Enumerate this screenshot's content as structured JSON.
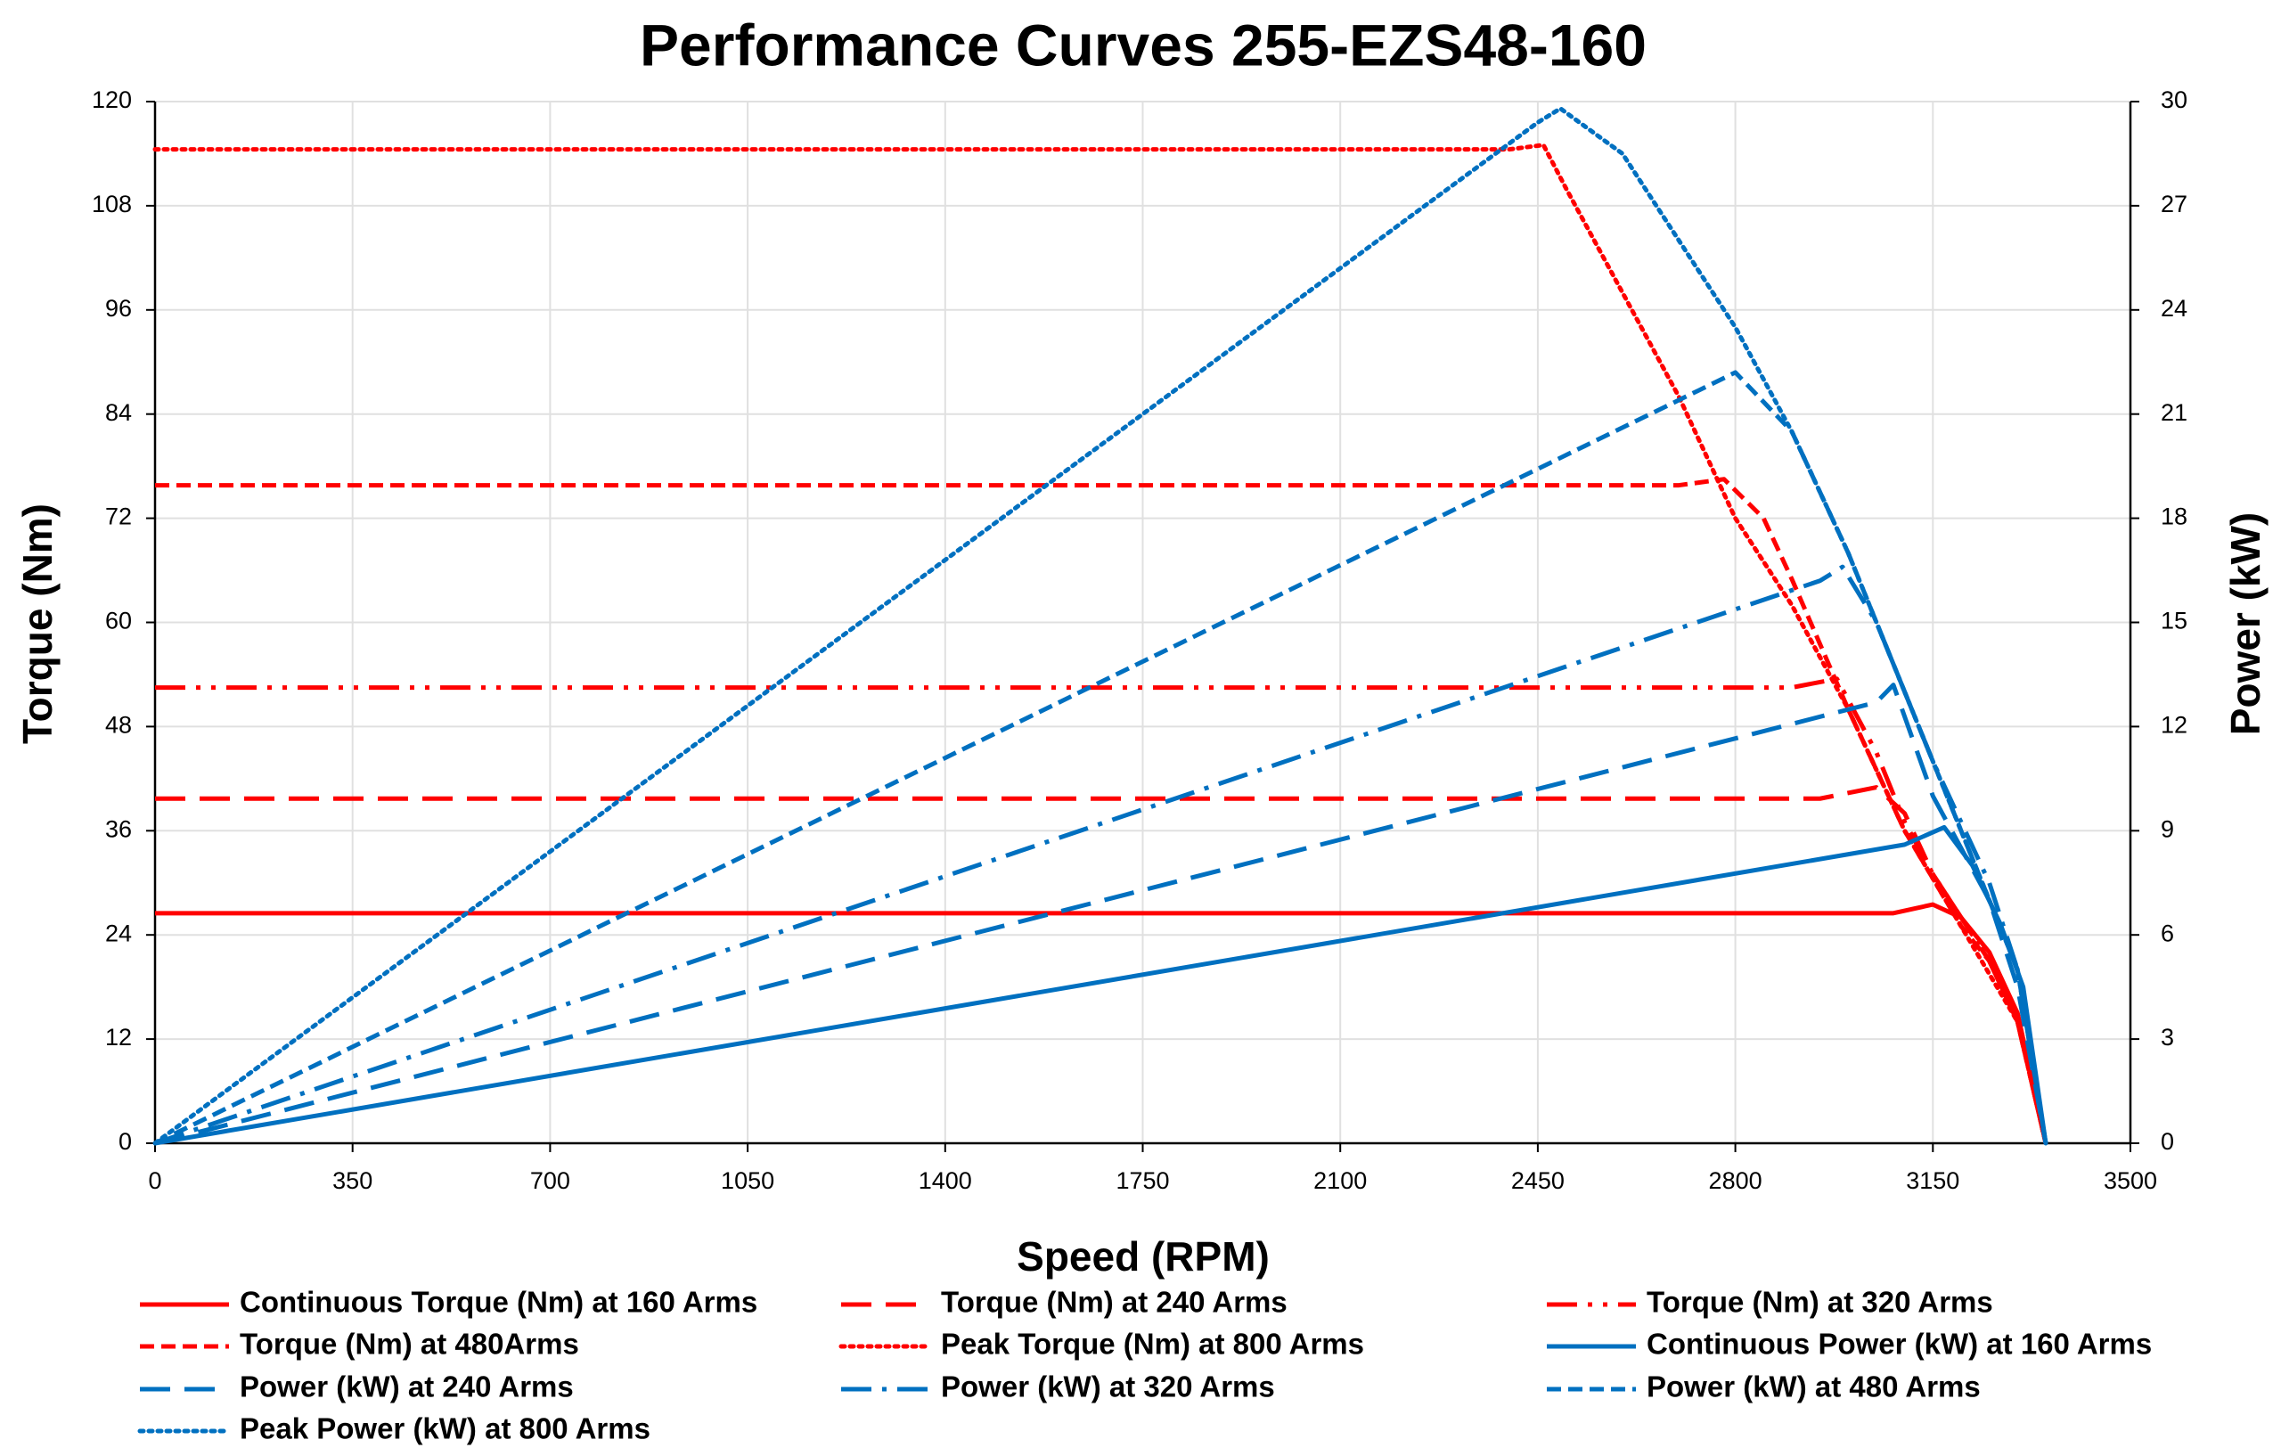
{
  "chart_data": {
    "type": "line",
    "title": "Performance Curves 255-EZS48-160",
    "x_label": "Speed (RPM)",
    "y_label": "Torque (Nm)",
    "y2_label": "Power (kW)",
    "xlim": [
      0,
      3500
    ],
    "xticks": [
      0,
      350,
      700,
      1050,
      1400,
      1750,
      2100,
      2450,
      2800,
      3150,
      3500
    ],
    "ylim": [
      0,
      120
    ],
    "yticks": [
      0,
      12,
      24,
      36,
      48,
      60,
      72,
      84,
      96,
      108,
      120
    ],
    "y2lim": [
      0,
      30
    ],
    "y2ticks": [
      0,
      3,
      6,
      9,
      12,
      15,
      18,
      21,
      24,
      27,
      30
    ],
    "grid": true,
    "series": [
      {
        "name": "Continuous Torque (Nm) at 160 Arms",
        "color": "#ff0000",
        "dash": "solid",
        "axis": "y",
        "x": [
          0,
          3080,
          3150,
          3200,
          3250,
          3300,
          3350
        ],
        "values": [
          26.5,
          26.5,
          27.5,
          26,
          22,
          15,
          0
        ]
      },
      {
        "name": "Torque (Nm) at 240 Arms",
        "color": "#ff0000",
        "dash": "long-dash",
        "axis": "y",
        "x": [
          0,
          2950,
          3050,
          3100,
          3150,
          3200,
          3250,
          3300,
          3350
        ],
        "values": [
          39.7,
          39.7,
          41,
          38,
          31,
          26,
          21,
          14,
          0
        ]
      },
      {
        "name": "Torque (Nm) at 320 Arms",
        "color": "#ff0000",
        "dash": "dash-dot-dot",
        "axis": "y",
        "x": [
          0,
          2900,
          2980,
          3050,
          3100,
          3150,
          3200,
          3250,
          3300,
          3350
        ],
        "values": [
          52.5,
          52.5,
          53.5,
          45,
          37,
          31,
          26,
          21,
          14,
          0
        ]
      },
      {
        "name": "Torque (Nm) at 480Arms",
        "color": "#ff0000",
        "dash": "dash",
        "axis": "y",
        "x": [
          0,
          2700,
          2780,
          2850,
          2900,
          3000,
          3100,
          3200,
          3250,
          3300,
          3350
        ],
        "values": [
          75.8,
          75.8,
          76.5,
          72,
          65,
          50,
          36,
          25,
          21,
          14,
          0
        ]
      },
      {
        "name": "Peak Torque (Nm) at 800 Arms",
        "color": "#ff0000",
        "dash": "dot",
        "axis": "y",
        "x": [
          0,
          2400,
          2460,
          2500,
          2600,
          2700,
          2800,
          2900,
          3000,
          3100,
          3200,
          3300,
          3350
        ],
        "values": [
          114.5,
          114.5,
          115,
          110,
          98,
          86,
          72,
          62,
          50,
          36,
          25,
          14,
          0
        ]
      },
      {
        "name": "Continuous Power (kW) at 160 Arms",
        "color": "#0070c0",
        "dash": "solid",
        "axis": "y2",
        "x": [
          0,
          3100,
          3170,
          3220,
          3270,
          3310,
          3350
        ],
        "values": [
          0,
          8.6,
          9.1,
          8,
          6.3,
          4.5,
          0
        ]
      },
      {
        "name": "Power (kW) at 240 Arms",
        "color": "#0070c0",
        "dash": "long-dash",
        "axis": "y2",
        "x": [
          0,
          3050,
          3080,
          3150,
          3200,
          3250,
          3300,
          3350
        ],
        "values": [
          0,
          12.7,
          13.2,
          10,
          8.5,
          7,
          4.5,
          0
        ]
      },
      {
        "name": "Power (kW) at 320 Arms",
        "color": "#0070c0",
        "dash": "dash-dot",
        "axis": "y2",
        "x": [
          0,
          2950,
          2990,
          3050,
          3150,
          3250,
          3300,
          3350
        ],
        "values": [
          0,
          16.2,
          16.6,
          15,
          11,
          7.5,
          5,
          0
        ]
      },
      {
        "name": "Power (kW) at 480 Arms",
        "color": "#0070c0",
        "dash": "dash",
        "axis": "y2",
        "x": [
          0,
          2750,
          2800,
          2900,
          3000,
          3100,
          3200,
          3300,
          3350
        ],
        "values": [
          0,
          21.8,
          22.2,
          20.5,
          17,
          13,
          9,
          5,
          0
        ]
      },
      {
        "name": "Peak Power (kW) at 800 Arms",
        "color": "#0070c0",
        "dash": "dot",
        "axis": "y2",
        "x": [
          0,
          2450,
          2490,
          2600,
          2700,
          2800,
          2900,
          3000,
          3100,
          3200,
          3300,
          3350
        ],
        "values": [
          0,
          29.4,
          29.8,
          28.5,
          26,
          23.5,
          20.5,
          17,
          13,
          9,
          5,
          0
        ]
      }
    ]
  }
}
